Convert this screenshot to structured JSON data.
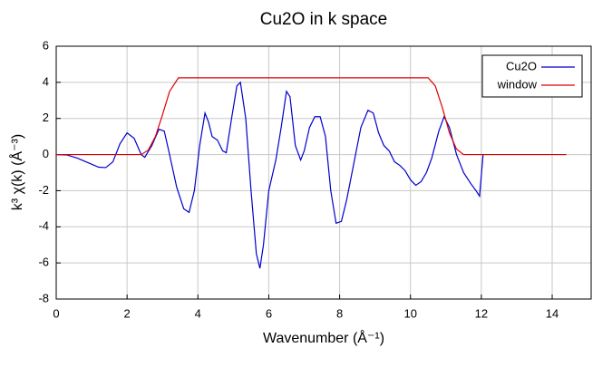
{
  "chart_data": {
    "type": "line",
    "title": "Cu2O in k space",
    "xlabel": "Wavenumber    (Å⁻¹)",
    "ylabel": "k³ χ(k)    (Å⁻³)",
    "xlim": [
      0,
      15.1
    ],
    "xticks": [
      0,
      2,
      4,
      6,
      8,
      10,
      12,
      14
    ],
    "ylim": [
      -8,
      6
    ],
    "yticks": [
      -8,
      -6,
      -4,
      -2,
      0,
      2,
      4,
      6
    ],
    "grid": true,
    "legend": "upper right",
    "series": [
      {
        "name": "Cu2O",
        "color": "#0000cc",
        "x": [
          0,
          0.3,
          0.6,
          0.9,
          1.2,
          1.4,
          1.6,
          1.8,
          2.0,
          2.2,
          2.4,
          2.5,
          2.7,
          2.9,
          3.05,
          3.2,
          3.4,
          3.6,
          3.75,
          3.9,
          4.05,
          4.2,
          4.3,
          4.4,
          4.55,
          4.7,
          4.8,
          4.95,
          5.1,
          5.2,
          5.35,
          5.5,
          5.65,
          5.75,
          5.85,
          6.0,
          6.2,
          6.35,
          6.5,
          6.6,
          6.75,
          6.9,
          7.0,
          7.15,
          7.3,
          7.45,
          7.6,
          7.75,
          7.9,
          8.05,
          8.2,
          8.4,
          8.6,
          8.8,
          8.95,
          9.1,
          9.25,
          9.4,
          9.55,
          9.7,
          9.85,
          10.0,
          10.15,
          10.3,
          10.45,
          10.6,
          10.8,
          10.95,
          11.1,
          11.3,
          11.5,
          11.7,
          11.85,
          11.95,
          12.05
        ],
        "values": [
          0,
          -0.02,
          -0.2,
          -0.45,
          -0.7,
          -0.72,
          -0.4,
          0.6,
          1.2,
          0.9,
          0.0,
          -0.15,
          0.5,
          1.4,
          1.3,
          0,
          -1.8,
          -3.0,
          -3.2,
          -2.0,
          0.5,
          2.3,
          1.8,
          1.0,
          0.8,
          0.2,
          0.1,
          2.0,
          3.8,
          4.0,
          2.0,
          -2.0,
          -5.5,
          -6.3,
          -5.0,
          -2.0,
          -0.3,
          1.5,
          3.5,
          3.2,
          0.5,
          -0.3,
          0.2,
          1.5,
          2.1,
          2.1,
          1.0,
          -2.0,
          -3.8,
          -3.7,
          -2.5,
          -0.5,
          1.5,
          2.45,
          2.3,
          1.2,
          0.5,
          0.2,
          -0.4,
          -0.6,
          -0.9,
          -1.4,
          -1.7,
          -1.5,
          -1.0,
          -0.2,
          1.3,
          2.1,
          1.5,
          0.0,
          -1.0,
          -1.6,
          -2.0,
          -2.3,
          0
        ]
      },
      {
        "name": "window",
        "color": "#dd0000",
        "x": [
          0,
          2.4,
          2.6,
          2.8,
          3.0,
          3.2,
          3.45,
          10.5,
          10.7,
          10.9,
          11.1,
          11.3,
          11.5,
          14.4
        ],
        "values": [
          0,
          0,
          0.25,
          1.0,
          2.2,
          3.5,
          4.25,
          4.25,
          3.8,
          2.6,
          1.2,
          0.3,
          0,
          0
        ]
      }
    ]
  }
}
